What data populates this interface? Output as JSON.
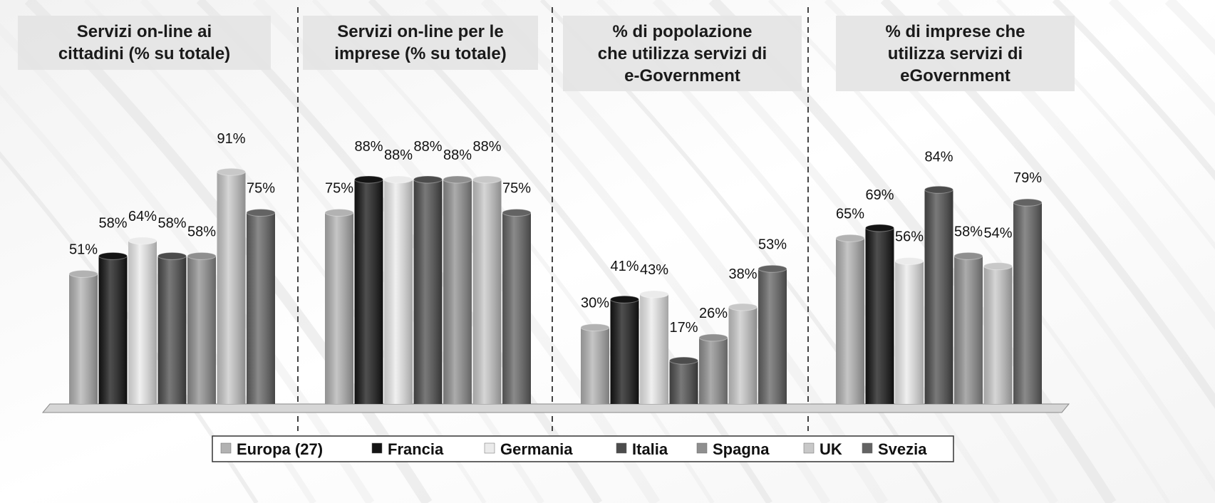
{
  "chart_data": {
    "type": "bar",
    "grid": false,
    "legend_position": "bottom",
    "series": [
      {
        "name": "Europa (27)",
        "color": "#b2b2b2"
      },
      {
        "name": "Francia",
        "color": "#141414"
      },
      {
        "name": "Germania",
        "color": "#ebebeb"
      },
      {
        "name": "Italia",
        "color": "#4c4c4c"
      },
      {
        "name": "Spagna",
        "color": "#8f8f8f"
      },
      {
        "name": "UK",
        "color": "#c8c8c8"
      },
      {
        "name": "Svezia",
        "color": "#636363"
      }
    ],
    "panels": [
      {
        "title": [
          "Servizi on-line ai",
          "cittadini (% su totale)"
        ],
        "values": [
          51,
          58,
          64,
          58,
          58,
          91,
          75
        ]
      },
      {
        "title": [
          "Servizi on-line per le",
          "imprese (% su totale)"
        ],
        "values": [
          75,
          88,
          88,
          88,
          88,
          88,
          75
        ]
      },
      {
        "title": [
          "% di popolazione",
          "che utilizza servizi di",
          "e-Government"
        ],
        "values": [
          30,
          41,
          43,
          17,
          26,
          38,
          53
        ]
      },
      {
        "title": [
          "% di imprese che",
          "utilizza servizi di",
          "eGovernment"
        ],
        "values": [
          65,
          69,
          56,
          84,
          58,
          54,
          79
        ]
      }
    ]
  }
}
